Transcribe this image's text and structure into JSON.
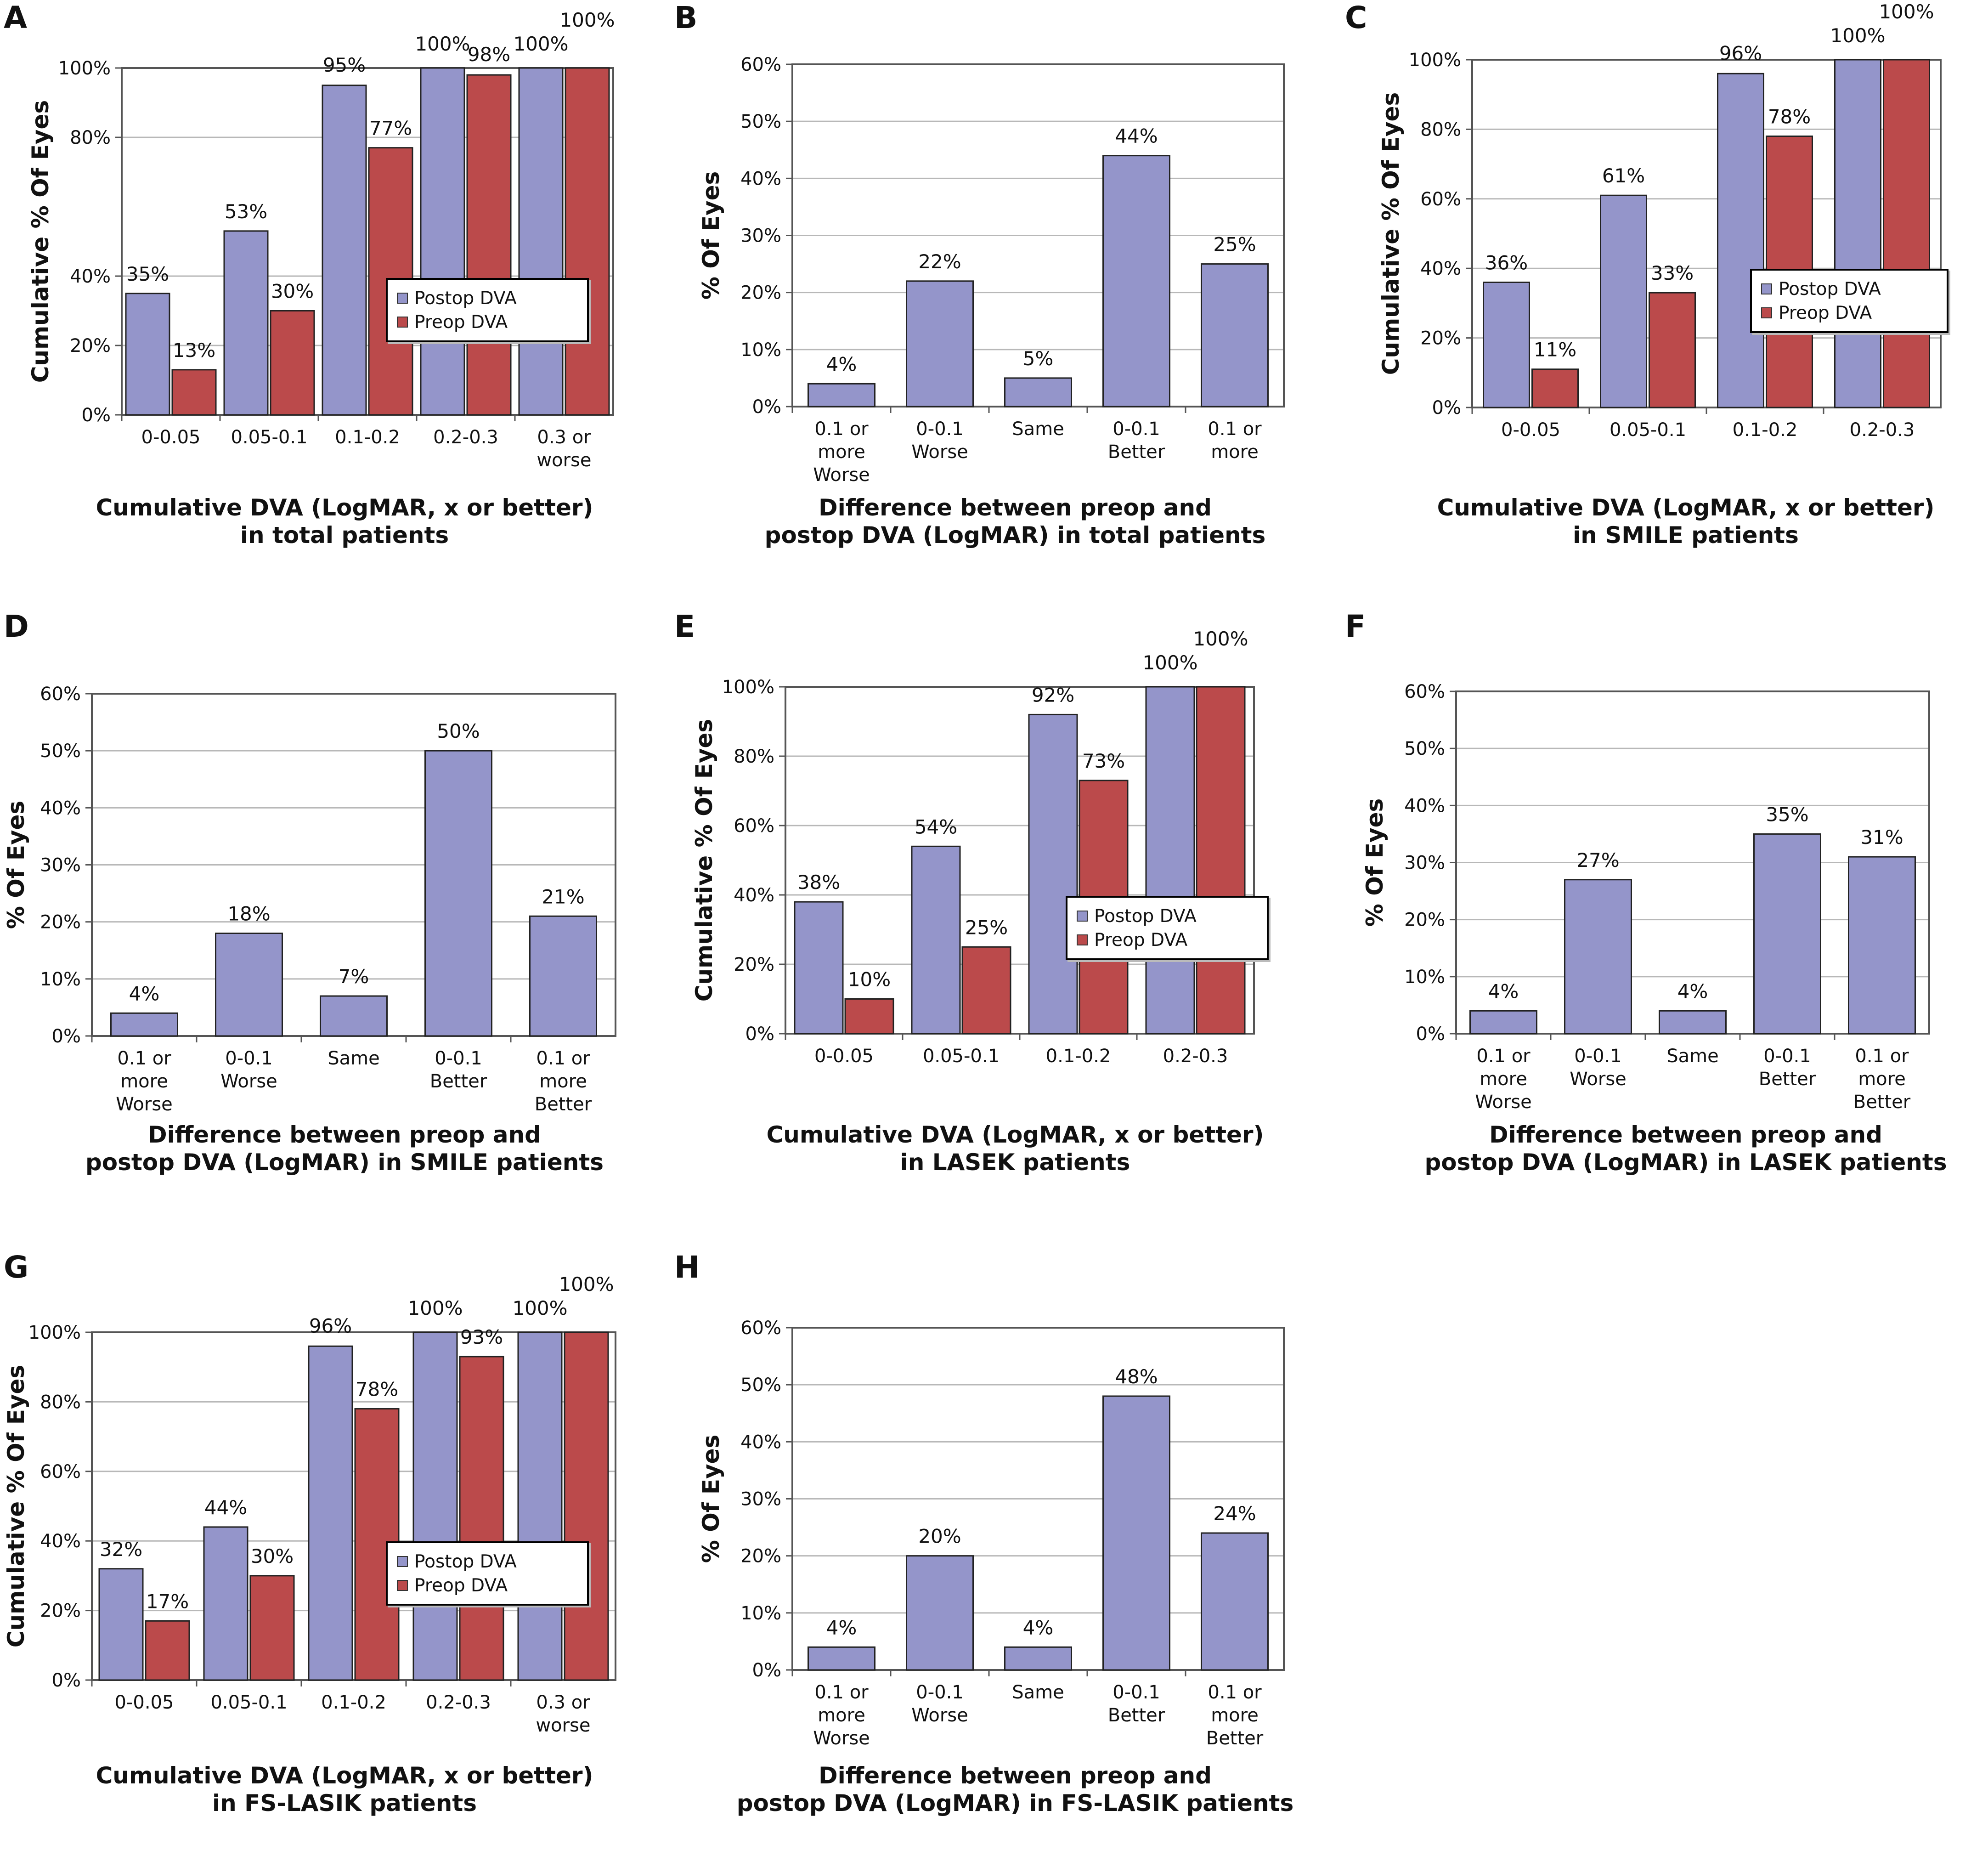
{
  "colors": {
    "postop": "#9495ca",
    "preop": "#bb4a4b",
    "grid": "#b8b8b8",
    "axis": "#555555"
  },
  "chart_data": [
    {
      "panel": "A",
      "type": "bar",
      "categories": [
        "0-0.05",
        "0.05-0.1",
        "0.1-0.2",
        "0.2-0.3",
        "0.3 or worse"
      ],
      "series": [
        {
          "name": "Postop DVA",
          "values": [
            35,
            53,
            95,
            100,
            100
          ],
          "labels": [
            "35%",
            "53%",
            "95%",
            "100%",
            "100%"
          ]
        },
        {
          "name": "Preop DVA",
          "values": [
            13,
            30,
            77,
            98,
            100
          ],
          "labels": [
            "13%",
            "30%",
            "77%",
            "98%",
            "100%"
          ]
        }
      ],
      "yticks": [
        "100%",
        "80%",
        "40%",
        "20%",
        "0%"
      ],
      "ytick_values": [
        100,
        80,
        40,
        20,
        0
      ],
      "ylim": [
        0,
        100
      ],
      "ylabel": "Cumulative % Of Eyes",
      "xlabel": [
        "Cumulative DVA (LogMAR, x or better)",
        "in total patients"
      ],
      "legend": [
        "Postop DVA",
        "Preop DVA"
      ]
    },
    {
      "panel": "B",
      "type": "bar",
      "categories": [
        "0.1 or more Worse",
        "0-0.1 Worse",
        "Same",
        "0-0.1 Better",
        "0.1 or more"
      ],
      "series": [
        {
          "name": "% Of Eyes",
          "values": [
            4,
            22,
            5,
            44,
            25
          ],
          "labels": [
            "4%",
            "22%",
            "5%",
            "44%",
            "25%"
          ]
        }
      ],
      "yticks": [
        "60%",
        "50%",
        "40%",
        "30%",
        "20%",
        "10%",
        "0%"
      ],
      "ytick_values": [
        60,
        50,
        40,
        30,
        20,
        10,
        0
      ],
      "ylim": [
        0,
        60
      ],
      "ylabel": "% Of Eyes",
      "xlabel": [
        "Difference between preop and",
        "postop DVA (LogMAR) in total patients"
      ]
    },
    {
      "panel": "C",
      "type": "bar",
      "categories": [
        "0-0.05",
        "0.05-0.1",
        "0.1-0.2",
        "0.2-0.3"
      ],
      "series": [
        {
          "name": "Postop DVA",
          "values": [
            36,
            61,
            96,
            100
          ],
          "labels": [
            "36%",
            "61%",
            "96%",
            "100%"
          ]
        },
        {
          "name": "Preop DVA",
          "values": [
            11,
            33,
            78,
            100
          ],
          "labels": [
            "11%",
            "33%",
            "78%",
            "100%"
          ]
        }
      ],
      "yticks": [
        "100%",
        "80%",
        "60%",
        "40%",
        "20%",
        "0%"
      ],
      "ytick_values": [
        100,
        80,
        60,
        40,
        20,
        0
      ],
      "ylim": [
        0,
        100
      ],
      "ylabel": "Cumulative % Of Eyes",
      "xlabel": [
        "Cumulative DVA (LogMAR, x or better)",
        "in SMILE patients"
      ],
      "legend": [
        "Postop DVA",
        "Preop DVA"
      ]
    },
    {
      "panel": "D",
      "type": "bar",
      "categories": [
        "0.1 or more Worse",
        "0-0.1 Worse",
        "Same",
        "0-0.1 Better",
        "0.1 or more Better"
      ],
      "series": [
        {
          "name": "% Of Eyes",
          "values": [
            4,
            18,
            7,
            50,
            21
          ],
          "labels": [
            "4%",
            "18%",
            "7%",
            "50%",
            "21%"
          ]
        }
      ],
      "yticks": [
        "60%",
        "50%",
        "40%",
        "30%",
        "20%",
        "10%",
        "0%"
      ],
      "ytick_values": [
        60,
        50,
        40,
        30,
        20,
        10,
        0
      ],
      "ylim": [
        0,
        60
      ],
      "ylabel": "% Of Eyes",
      "xlabel": [
        "Difference between preop and",
        "postop DVA (LogMAR) in SMILE patients"
      ]
    },
    {
      "panel": "E",
      "type": "bar",
      "categories": [
        "0-0.05",
        "0.05-0.1",
        "0.1-0.2",
        "0.2-0.3"
      ],
      "series": [
        {
          "name": "Postop DVA",
          "values": [
            38,
            54,
            92,
            100
          ],
          "labels": [
            "38%",
            "54%",
            "92%",
            "100%"
          ]
        },
        {
          "name": "Preop DVA",
          "values": [
            10,
            25,
            73,
            100
          ],
          "labels": [
            "10%",
            "25%",
            "73%",
            "100%"
          ]
        }
      ],
      "yticks": [
        "100%",
        "80%",
        "60%",
        "40%",
        "20%",
        "0%"
      ],
      "ytick_values": [
        100,
        80,
        60,
        40,
        20,
        0
      ],
      "ylim": [
        0,
        100
      ],
      "ylabel": "Cumulative % Of Eyes",
      "xlabel": [
        "Cumulative DVA (LogMAR, x or better)",
        "in LASEK patients"
      ],
      "legend": [
        "Postop DVA",
        "Preop DVA"
      ]
    },
    {
      "panel": "F",
      "type": "bar",
      "categories": [
        "0.1 or more Worse",
        "0-0.1 Worse",
        "Same",
        "0-0.1 Better",
        "0.1 or more Better"
      ],
      "series": [
        {
          "name": "% Of Eyes",
          "values": [
            4,
            27,
            4,
            35,
            31
          ],
          "labels": [
            "4%",
            "27%",
            "4%",
            "35%",
            "31%"
          ]
        }
      ],
      "yticks": [
        "60%",
        "50%",
        "40%",
        "30%",
        "20%",
        "10%",
        "0%"
      ],
      "ytick_values": [
        60,
        50,
        40,
        30,
        20,
        10,
        0
      ],
      "ylim": [
        0,
        60
      ],
      "ylabel": "% Of Eyes",
      "xlabel": [
        "Difference between preop and",
        "postop DVA (LogMAR) in LASEK patients"
      ]
    },
    {
      "panel": "G",
      "type": "bar",
      "categories": [
        "0-0.05",
        "0.05-0.1",
        "0.1-0.2",
        "0.2-0.3",
        "0.3 or worse"
      ],
      "series": [
        {
          "name": "Postop DVA",
          "values": [
            32,
            44,
            96,
            100,
            100
          ],
          "labels": [
            "32%",
            "44%",
            "96%",
            "100%",
            "100%"
          ]
        },
        {
          "name": "Preop DVA",
          "values": [
            17,
            30,
            78,
            93,
            100
          ],
          "labels": [
            "17%",
            "30%",
            "78%",
            "93%",
            "100%"
          ]
        }
      ],
      "yticks": [
        "100%",
        "80%",
        "60%",
        "40%",
        "20%",
        "0%"
      ],
      "ytick_values": [
        100,
        80,
        60,
        40,
        20,
        0
      ],
      "ylim": [
        0,
        100
      ],
      "ylabel": "Cumulative % Of Eyes",
      "xlabel": [
        "Cumulative DVA (LogMAR, x or better)",
        "in FS-LASIK patients"
      ],
      "legend": [
        "Postop DVA",
        "Preop DVA"
      ]
    },
    {
      "panel": "H",
      "type": "bar",
      "categories": [
        "0.1 or more Worse",
        "0-0.1 Worse",
        "Same",
        "0-0.1 Better",
        "0.1 or more Better"
      ],
      "series": [
        {
          "name": "% Of Eyes",
          "values": [
            4,
            20,
            4,
            48,
            24
          ],
          "labels": [
            "4%",
            "20%",
            "4%",
            "48%",
            "24%"
          ]
        }
      ],
      "yticks": [
        "60%",
        "50%",
        "40%",
        "30%",
        "20%",
        "10%",
        "0%"
      ],
      "ytick_values": [
        60,
        50,
        40,
        30,
        20,
        10,
        0
      ],
      "ylim": [
        0,
        60
      ],
      "ylabel": "% Of Eyes",
      "xlabel": [
        "Difference between preop and",
        "postop DVA (LogMAR) in FS-LASIK patients"
      ]
    }
  ]
}
